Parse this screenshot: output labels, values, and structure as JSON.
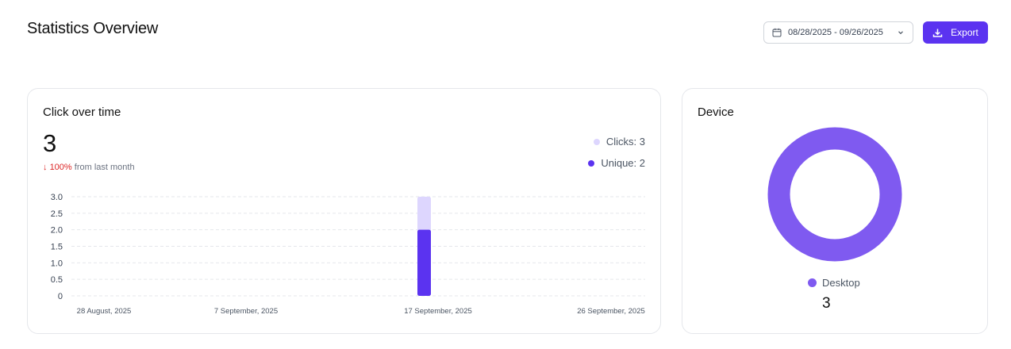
{
  "header": {
    "title": "Statistics Overview",
    "date_range": "08/28/2025 - 09/26/2025",
    "export_label": "Export"
  },
  "clicks_card": {
    "title": "Click over time",
    "total": "3",
    "change_arrow": "↓",
    "change_pct": "100%",
    "change_text": "from last month",
    "legend": [
      {
        "label": "Clicks: 3",
        "color": "#ddd6fe"
      },
      {
        "label": "Unique: 2",
        "color": "#5b33f0"
      }
    ]
  },
  "device_card": {
    "title": "Device",
    "legend_label": "Desktop",
    "count": "3",
    "color": "#7f5af0"
  },
  "chart_data": {
    "type": "bar",
    "y_ticks": [
      "3.0",
      "2.5",
      "2.0",
      "1.5",
      "1.0",
      "0.5",
      "0"
    ],
    "ylim": [
      0,
      3
    ],
    "x_labels": [
      "28 August, 2025",
      "7 September, 2025",
      "17 September, 2025",
      "26 September, 2025"
    ],
    "bar_date": "17 September, 2025",
    "series": [
      {
        "name": "Clicks",
        "values": [
          3
        ],
        "color": "#ddd6fe"
      },
      {
        "name": "Unique",
        "values": [
          2
        ],
        "color": "#5b33f0"
      }
    ],
    "grid": true
  }
}
